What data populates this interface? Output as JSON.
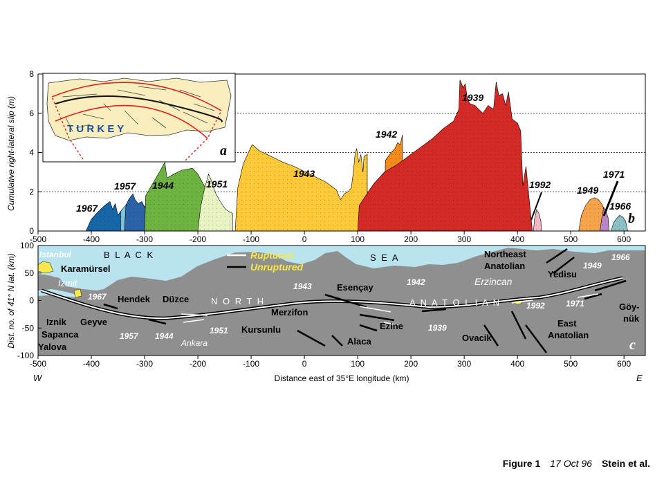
{
  "chart_data": [
    {
      "panel": "b",
      "type": "area",
      "ylabel": "Cumulative right-lateral slip (m)",
      "xlim": [
        -500,
        640
      ],
      "ylim": [
        0,
        8
      ],
      "x_ticks": [
        -500,
        -400,
        -300,
        -200,
        -100,
        0,
        100,
        200,
        300,
        400,
        500,
        600
      ],
      "y_ticks": [
        0,
        2,
        4,
        6,
        8
      ],
      "grid": "horizontal dotted",
      "series": [
        {
          "name": "1967",
          "color": "#1766a8",
          "values": [
            [
              -410,
              0
            ],
            [
              -400,
              0.6
            ],
            [
              -390,
              0.9
            ],
            [
              -375,
              1.3
            ],
            [
              -365,
              1.5
            ],
            [
              -360,
              1.1
            ],
            [
              -355,
              1.4
            ],
            [
              -350,
              0.8
            ],
            [
              -345,
              1.0
            ],
            [
              -340,
              0.6
            ],
            [
              -340,
              0
            ]
          ]
        },
        {
          "name": "1967",
          "color": "#7cc4dd",
          "values": [
            [
              -345,
              0
            ],
            [
              -345,
              1.0
            ],
            [
              -333,
              1.4
            ],
            [
              -320,
              1.6
            ],
            [
              -315,
              1.2
            ],
            [
              -305,
              1.0
            ],
            [
              -300,
              0
            ]
          ]
        },
        {
          "name": "1957",
          "color": "#2b63a8",
          "values": [
            [
              -338,
              0
            ],
            [
              -335,
              1.3
            ],
            [
              -330,
              1.6
            ],
            [
              -322,
              1.9
            ],
            [
              -318,
              1.6
            ],
            [
              -312,
              1.4
            ],
            [
              -305,
              1.5
            ],
            [
              -300,
              1.2
            ],
            [
              -295,
              1.6
            ],
            [
              -290,
              0
            ]
          ]
        },
        {
          "name": "1944",
          "color": "#6db33f",
          "values": [
            [
              -300,
              0
            ],
            [
              -298,
              1.8
            ],
            [
              -285,
              2.4
            ],
            [
              -270,
              3.1
            ],
            [
              -262,
              3.5
            ],
            [
              -258,
              2.7
            ],
            [
              -245,
              2.9
            ],
            [
              -230,
              3.1
            ],
            [
              -210,
              3.2
            ],
            [
              -200,
              2.9
            ],
            [
              -188,
              2.3
            ],
            [
              -175,
              1.9
            ],
            [
              -160,
              1.5
            ],
            [
              -145,
              1.0
            ],
            [
              -135,
              0.9
            ],
            [
              -135,
              0
            ]
          ]
        },
        {
          "name": "1951",
          "color": "#e8f3c4",
          "values": [
            [
              -200,
              0
            ],
            [
              -195,
              1.2
            ],
            [
              -188,
              2.1
            ],
            [
              -180,
              2.9
            ],
            [
              -175,
              2.6
            ],
            [
              -168,
              2.0
            ],
            [
              -158,
              1.5
            ],
            [
              -148,
              1.1
            ],
            [
              -135,
              0.9
            ],
            [
              -135,
              0
            ]
          ]
        },
        {
          "name": "1943",
          "color": "#fcc93a",
          "values": [
            [
              -130,
              0
            ],
            [
              -125,
              2.2
            ],
            [
              -115,
              3.4
            ],
            [
              -105,
              4.0
            ],
            [
              -98,
              4.4
            ],
            [
              -85,
              4.1
            ],
            [
              -70,
              3.9
            ],
            [
              -55,
              3.7
            ],
            [
              -40,
              3.5
            ],
            [
              -20,
              3.3
            ],
            [
              -5,
              3.1
            ],
            [
              10,
              2.9
            ],
            [
              25,
              2.7
            ],
            [
              40,
              2.5
            ],
            [
              50,
              2.3
            ],
            [
              60,
              2.1
            ],
            [
              68,
              1.6
            ],
            [
              75,
              1.9
            ],
            [
              82,
              2.0
            ],
            [
              88,
              2.2
            ],
            [
              92,
              3.0
            ],
            [
              95,
              3.9
            ],
            [
              98,
              4.2
            ],
            [
              102,
              3.5
            ],
            [
              106,
              3.9
            ],
            [
              110,
              3.0
            ],
            [
              112,
              3.8
            ],
            [
              118,
              3.9
            ],
            [
              118,
              0
            ]
          ]
        },
        {
          "name": "1942",
          "color": "#f28a1c",
          "values": [
            [
              150,
              0
            ],
            [
              152,
              3.6
            ],
            [
              160,
              3.9
            ],
            [
              170,
              4.2
            ],
            [
              175,
              4.5
            ],
            [
              180,
              4.4
            ],
            [
              184,
              4.9
            ],
            [
              185,
              0
            ]
          ]
        },
        {
          "name": "1939",
          "color": "#d42a25",
          "values": [
            [
              100,
              0
            ],
            [
              103,
              1.3
            ],
            [
              115,
              1.8
            ],
            [
              130,
              2.4
            ],
            [
              150,
              3.0
            ],
            [
              175,
              3.4
            ],
            [
              200,
              3.9
            ],
            [
              220,
              4.3
            ],
            [
              240,
              4.7
            ],
            [
              260,
              5.2
            ],
            [
              280,
              5.6
            ],
            [
              290,
              6.2
            ],
            [
              292,
              7.7
            ],
            [
              298,
              7.3
            ],
            [
              302,
              7.5
            ],
            [
              305,
              6.9
            ],
            [
              310,
              6.5
            ],
            [
              320,
              6.4
            ],
            [
              335,
              6.0
            ],
            [
              345,
              6.4
            ],
            [
              355,
              6.2
            ],
            [
              360,
              7.6
            ],
            [
              365,
              6.9
            ],
            [
              372,
              7.0
            ],
            [
              378,
              6.4
            ],
            [
              383,
              7.1
            ],
            [
              390,
              5.7
            ],
            [
              400,
              5.5
            ],
            [
              406,
              5.1
            ],
            [
              410,
              2.3
            ],
            [
              416,
              3.3
            ],
            [
              421,
              1.9
            ],
            [
              425,
              0.8
            ],
            [
              428,
              0
            ]
          ]
        },
        {
          "name": "1992",
          "color": "#f2b8c6",
          "values": [
            [
              430,
              0
            ],
            [
              432,
              0.6
            ],
            [
              436,
              1.1
            ],
            [
              440,
              0.9
            ],
            [
              444,
              0.5
            ],
            [
              445,
              0
            ]
          ]
        },
        {
          "name": "1949",
          "color": "#f6a44c",
          "values": [
            [
              515,
              0
            ],
            [
              520,
              0.8
            ],
            [
              528,
              1.3
            ],
            [
              536,
              1.6
            ],
            [
              545,
              1.7
            ],
            [
              552,
              1.6
            ],
            [
              560,
              1.3
            ],
            [
              566,
              0.7
            ],
            [
              570,
              0
            ]
          ]
        },
        {
          "name": "1971",
          "color": "#b885c5",
          "values": [
            [
              555,
              0
            ],
            [
              558,
              0.6
            ],
            [
              562,
              1.2
            ],
            [
              566,
              1.0
            ],
            [
              570,
              0.7
            ],
            [
              572,
              0
            ]
          ]
        },
        {
          "name": "1966",
          "color": "#8cc0c4",
          "values": [
            [
              576,
              0
            ],
            [
              580,
              0.4
            ],
            [
              585,
              0.6
            ],
            [
              592,
              0.8
            ],
            [
              598,
              0.7
            ],
            [
              603,
              0.5
            ],
            [
              607,
              0
            ]
          ]
        }
      ],
      "labels": [
        "1967",
        "1957",
        "1944",
        "1951",
        "1943",
        "1942",
        "1939",
        "1992",
        "1949",
        "1971",
        "1966"
      ],
      "panel_letter": "b"
    },
    {
      "panel": "c",
      "type": "map",
      "xlabel": "Distance east of 35°E longitude (km)",
      "ylabel": "Dist. no. of 41° N lat. (km)",
      "xlim": [
        -500,
        640
      ],
      "ylim": [
        -100,
        100
      ],
      "x_ticks": [
        -500,
        -400,
        -300,
        -200,
        -100,
        0,
        100,
        200,
        300,
        400,
        500,
        600
      ],
      "y_ticks": [
        -100,
        -50,
        0,
        50,
        100
      ],
      "legend": [
        {
          "label": "Ruptured",
          "color": "#ffffff"
        },
        {
          "label": "Unruptured",
          "color": "#000000"
        }
      ],
      "panel_letter": "c",
      "dir_west": "W",
      "dir_east": "E"
    }
  ],
  "inset": {
    "letter": "a",
    "label": "T U R K E Y"
  },
  "map_places": {
    "istanbul": "Istanbul",
    "karamursel": "Karamürsel",
    "izmit": "Izmit",
    "black": "B L A C K",
    "sea": "S E A",
    "north": "N O R T H",
    "anatolian": "A N A T O L I A N",
    "hendek": "Hendek",
    "duzce": "Düzce",
    "iznik": "Iznik",
    "geyve": "Geyve",
    "sapanca": "Sapanca",
    "yalova": "Yalova",
    "ankara": "Ankara",
    "kursunlu": "Kursunlu",
    "merzifon": "Merzifon",
    "alaca": "Alaca",
    "ezine": "Ezine",
    "esencay": "Esençay",
    "erzincan": "Erzincan",
    "ovacik": "Ovacik",
    "yedisu": "Yedisu",
    "goynuk1": "Göy-",
    "goynuk2": "nük",
    "ne_anat1": "Northeast",
    "ne_anat2": "Anatolian",
    "e_anat1": "East",
    "e_anat2": "Anatolian"
  },
  "map_years": {
    "y1967": "1967",
    "y1957": "1957",
    "y1944": "1944",
    "y1951": "1951",
    "y1943": "1943",
    "y1942": "1942",
    "y1939": "1939",
    "y1992": "1992",
    "y1949": "1949",
    "y1966": "1966",
    "y1971": "1971"
  },
  "caption": {
    "figure": "Figure 1",
    "date": "17 Oct 96",
    "authors": "Stein et al."
  },
  "colors": {
    "sea": "#b9e3ee",
    "land": "#8f8f8f",
    "inset_land": "#f8eebd",
    "grid": "#000000"
  }
}
